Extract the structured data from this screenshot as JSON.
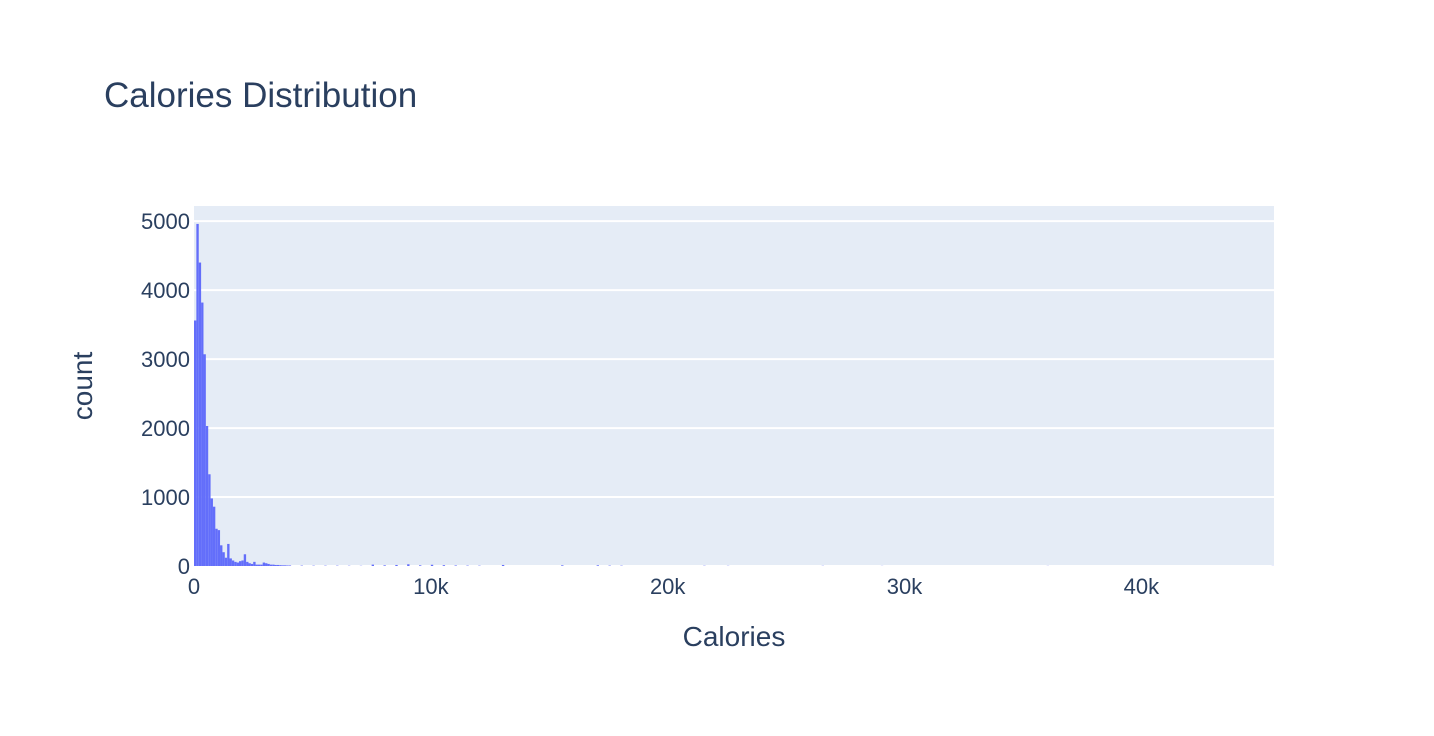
{
  "chart_data": {
    "type": "bar",
    "title": "Calories Distribution",
    "xlabel": "Calories",
    "ylabel": "count",
    "xlim": [
      0,
      45600
    ],
    "ylim": [
      0,
      5220
    ],
    "x_ticks": [
      0,
      10000,
      20000,
      30000,
      40000
    ],
    "x_tick_labels": [
      "0",
      "10k",
      "20k",
      "30k",
      "40k"
    ],
    "y_ticks": [
      0,
      1000,
      2000,
      3000,
      4000,
      5000
    ],
    "y_tick_labels": [
      "0",
      "1000",
      "2000",
      "3000",
      "4000",
      "5000"
    ],
    "grid": true,
    "bar_color": "#636efa",
    "plot_background": "#e5ecf6",
    "bin_width": 100,
    "bin_starts": [
      0,
      100,
      200,
      300,
      400,
      500,
      600,
      700,
      800,
      900,
      1000,
      1100,
      1200,
      1300,
      1400,
      1500,
      1600,
      1700,
      1800,
      1900,
      2000,
      2100,
      2200,
      2300,
      2400,
      2500,
      2600,
      2700,
      2800,
      2900,
      3000,
      3100,
      3200,
      3300,
      3400,
      3500,
      3600,
      3700,
      3800,
      3900,
      4000,
      4500,
      5000,
      5500,
      6000,
      6500,
      7000,
      7500,
      8000,
      8500,
      9000,
      9500,
      10000,
      10500,
      11000,
      11500,
      12000,
      13000,
      15500,
      17000,
      17500,
      18000,
      21500,
      22500,
      26500,
      29000,
      36000,
      45500
    ],
    "values": [
      3560,
      4960,
      4400,
      3820,
      3070,
      2030,
      1330,
      980,
      860,
      540,
      520,
      300,
      200,
      120,
      320,
      110,
      80,
      60,
      50,
      70,
      80,
      170,
      60,
      40,
      30,
      60,
      20,
      20,
      20,
      50,
      40,
      30,
      20,
      20,
      15,
      15,
      12,
      10,
      10,
      8,
      8,
      6,
      5,
      5,
      5,
      4,
      3,
      20,
      10,
      15,
      25,
      10,
      18,
      12,
      8,
      6,
      5,
      15,
      10,
      10,
      6,
      5,
      4,
      3,
      3,
      2,
      2,
      2
    ]
  }
}
